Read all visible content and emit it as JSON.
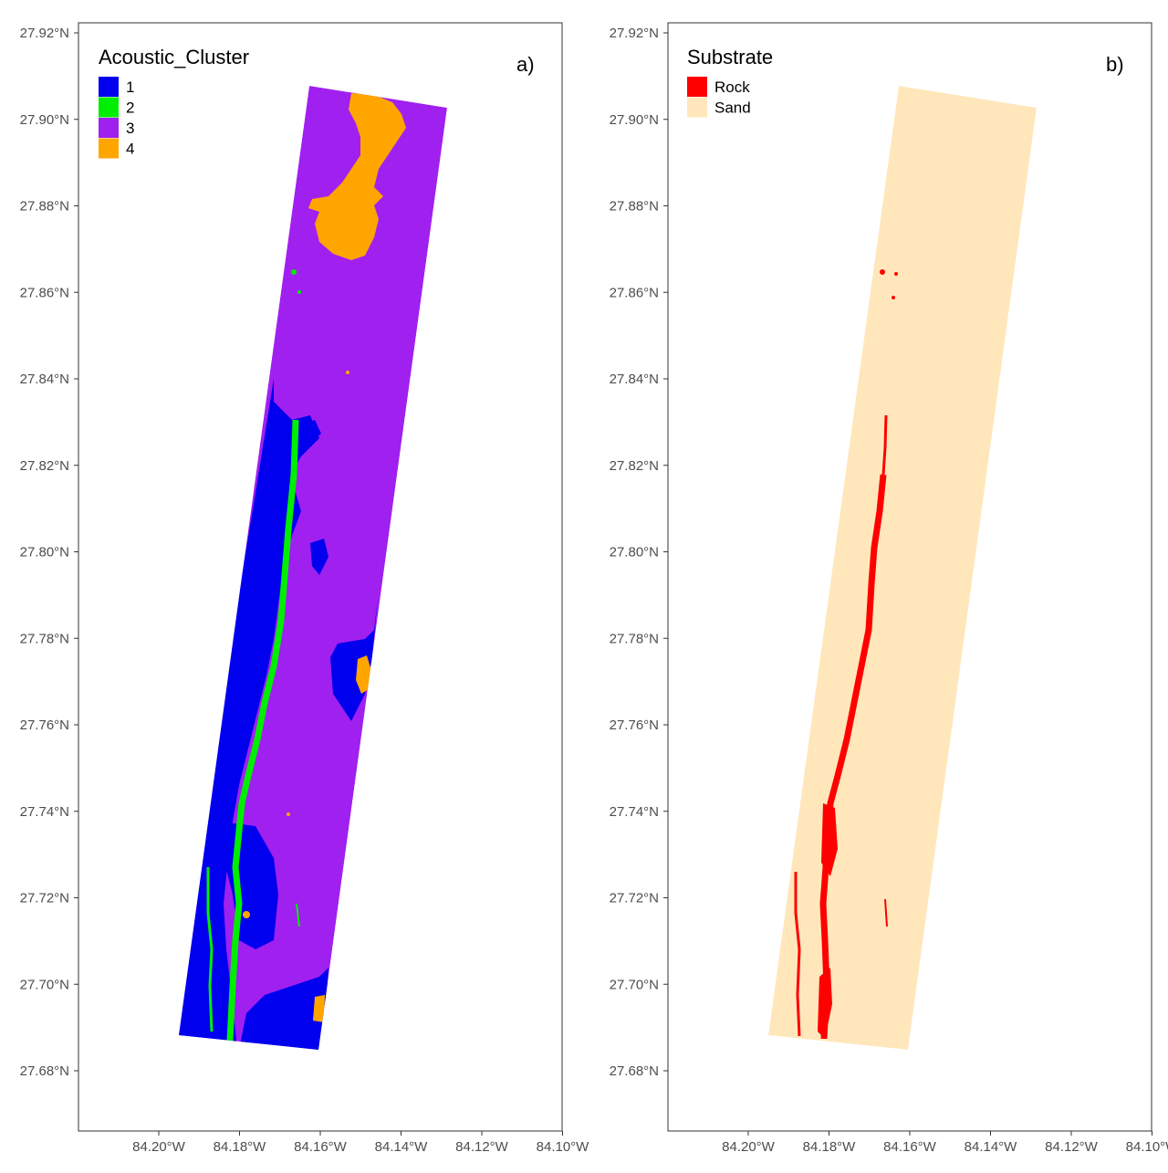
{
  "colors": {
    "cluster_1": "#0000ee",
    "cluster_2": "#00ee00",
    "cluster_3": "#a020f0",
    "cluster_4": "#ffa500",
    "rock": "#ff0000",
    "sand": "#ffe7bb",
    "axis_text": "#4d4d4d",
    "panel_border": "#333333"
  },
  "axes": {
    "lat_ticks": [
      "27.92°N",
      "27.90°N",
      "27.88°N",
      "27.86°N",
      "27.84°N",
      "27.82°N",
      "27.80°N",
      "27.78°N",
      "27.76°N",
      "27.74°N",
      "27.72°N",
      "27.70°N",
      "27.68°N"
    ],
    "lon_ticks": [
      "84.20°W",
      "84.18°W",
      "84.16°W",
      "84.14°W",
      "84.12°W",
      "84.10°W"
    ]
  },
  "panel_a": {
    "label": "a)",
    "legend_title": "Acoustic_Cluster",
    "legend": [
      {
        "label": "1",
        "color_key": "cluster_1"
      },
      {
        "label": "2",
        "color_key": "cluster_2"
      },
      {
        "label": "3",
        "color_key": "cluster_3"
      },
      {
        "label": "4",
        "color_key": "cluster_4"
      }
    ]
  },
  "panel_b": {
    "label": "b)",
    "legend_title": "Substrate",
    "legend": [
      {
        "label": "Rock",
        "color_key": "rock"
      },
      {
        "label": "Sand",
        "color_key": "sand"
      }
    ]
  }
}
